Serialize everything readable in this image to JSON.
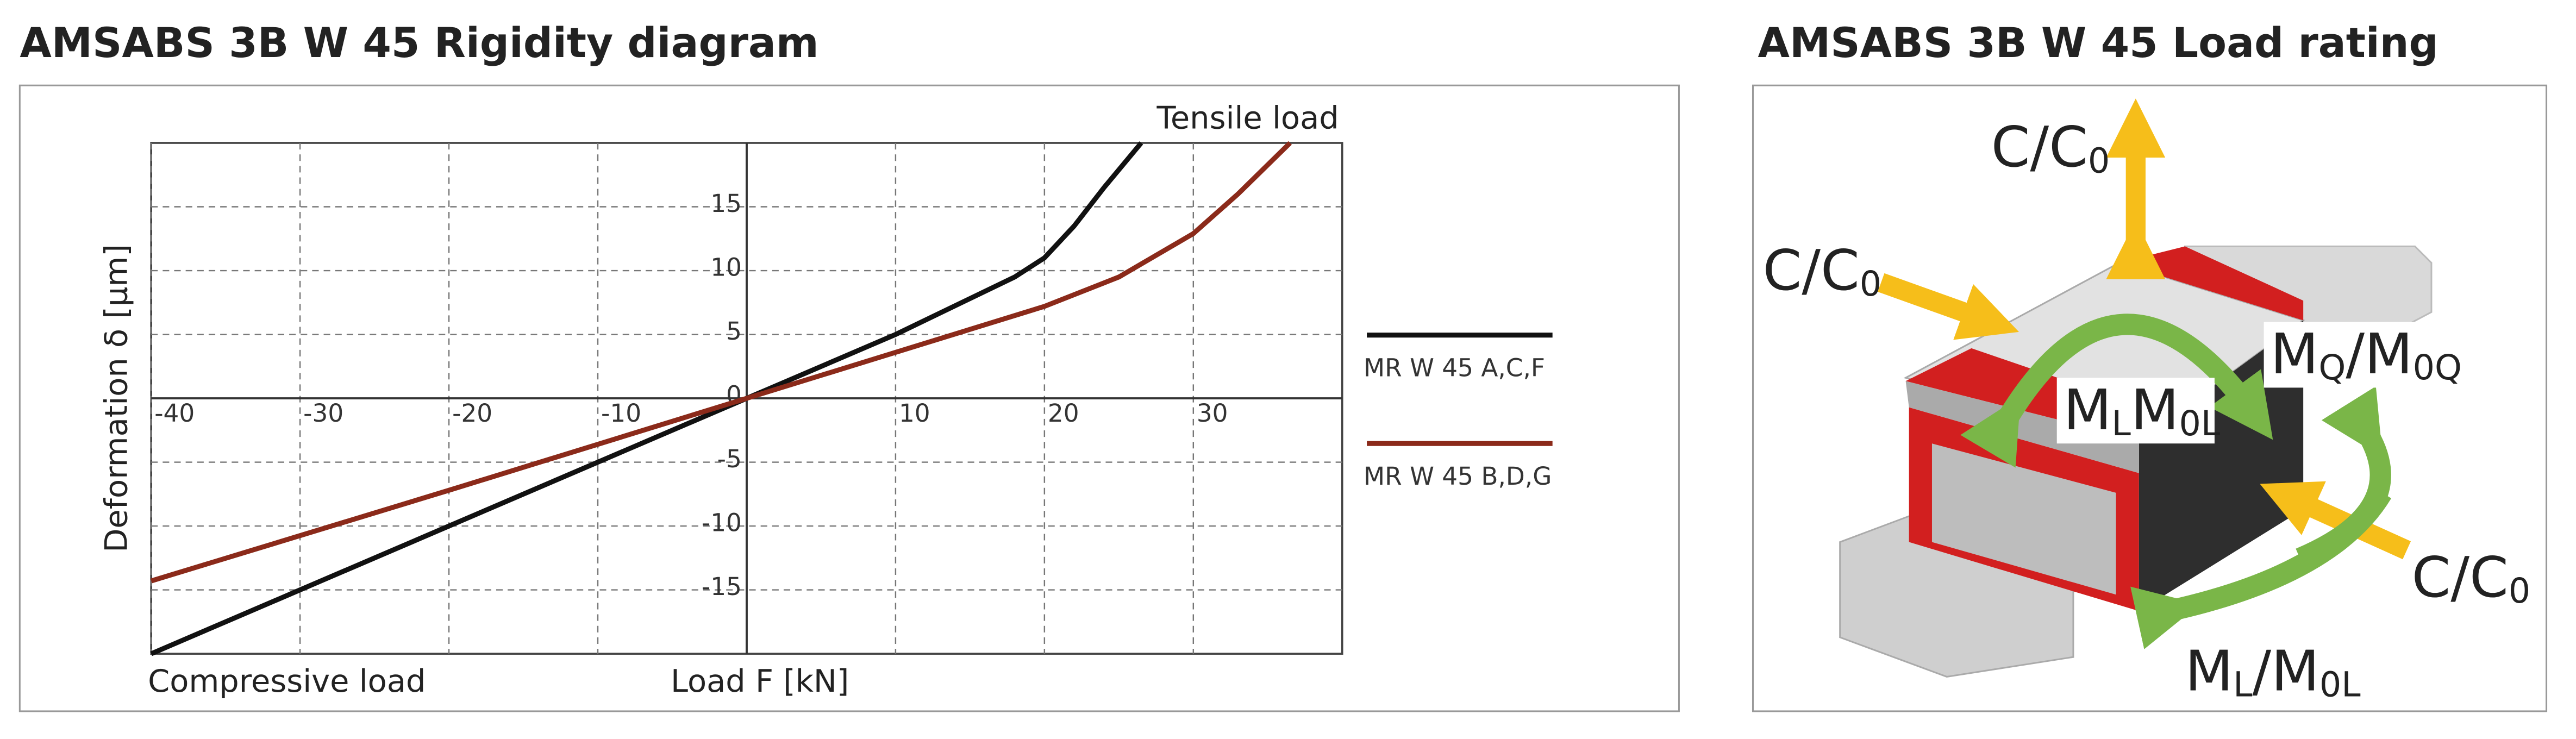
{
  "chart_data": {
    "type": "line",
    "title": "AMSABS 3B W 45 Rigidity diagram",
    "y_label": "Deformation δ [µm]",
    "x_label": "Load F [kN]",
    "annotations": [
      "Tensile load",
      "Compressive load"
    ],
    "xlim": [
      -40,
      40
    ],
    "ylim": [
      -20,
      20
    ],
    "xticks": [
      -40,
      -30,
      -20,
      -10,
      10,
      20,
      30
    ],
    "yticks": [
      -15,
      -10,
      -5,
      0,
      5,
      10,
      15
    ],
    "grid": true,
    "legend": "right",
    "series": [
      {
        "name": "MR W 45 A,C,F",
        "color": "#111111",
        "x": [
          -40,
          -30,
          -20,
          -10,
          0,
          10,
          18,
          20,
          22,
          24,
          26.5
        ],
        "values": [
          -20,
          -15,
          -10,
          -5,
          0,
          5,
          9.5,
          11,
          13.5,
          16.5,
          20
        ]
      },
      {
        "name": "MR W 45 B,D,G",
        "color": "#8b2a1a",
        "x": [
          -40,
          -20,
          0,
          10,
          20,
          25,
          30,
          33,
          36.5
        ],
        "values": [
          -14.3,
          -7.2,
          0,
          3.6,
          7.2,
          9.5,
          12.9,
          16,
          20
        ]
      }
    ]
  },
  "load_rating": {
    "title": "AMSABS 3B W 45 Load rating",
    "labels": [
      {
        "parts": [
          "C/C",
          "0"
        ]
      },
      {
        "parts": [
          "C/C",
          "0"
        ]
      },
      {
        "parts": [
          "C/C",
          "0"
        ]
      },
      {
        "parts": [
          "M",
          "Q",
          "/M",
          "0Q"
        ]
      },
      {
        "parts": [
          "M",
          "L",
          "M",
          "0L"
        ]
      },
      {
        "parts": [
          "M",
          "L",
          "/M",
          "0L"
        ]
      }
    ]
  }
}
